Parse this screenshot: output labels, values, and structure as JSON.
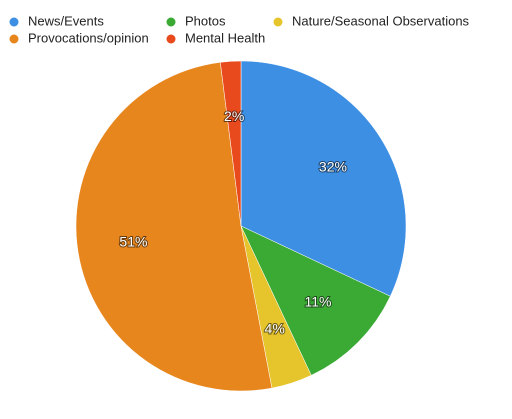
{
  "chart_data": {
    "type": "pie",
    "categories": [
      "News/Events",
      "Photos",
      "Nature/Seasonal Observations",
      "Provocations/opinion",
      "Mental Health"
    ],
    "values": [
      32,
      11,
      4,
      51,
      2
    ],
    "value_labels": [
      "32%",
      "11%",
      "4%",
      "51%",
      "2%"
    ],
    "colors": [
      "#3d8fe4",
      "#3aaa35",
      "#e6c42b",
      "#e8861e",
      "#e94a1d"
    ]
  }
}
